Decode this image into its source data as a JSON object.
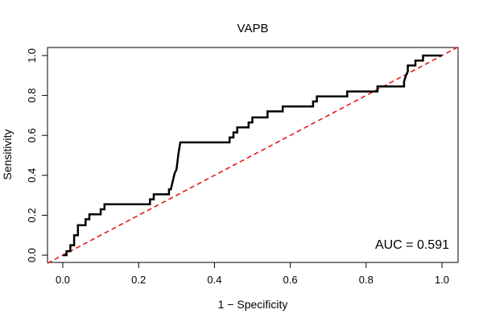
{
  "chart_data": {
    "type": "line",
    "title": "VAPB",
    "xlabel": "1 − Specificity",
    "ylabel": "Sensitivity",
    "xlim": [
      0.0,
      1.0
    ],
    "ylim": [
      0.0,
      1.0
    ],
    "x_ticks": [
      "0.0",
      "0.2",
      "0.4",
      "0.6",
      "0.8",
      "1.0"
    ],
    "y_ticks": [
      "0.0",
      "0.2",
      "0.4",
      "0.6",
      "0.8",
      "1.0"
    ],
    "grid": false,
    "annotation": "AUC = 0.591",
    "colors": {
      "roc": "#000000",
      "reference": "#e41a1c"
    },
    "series": [
      {
        "points": [
          [
            0.0,
            0.0
          ],
          [
            0.01,
            0.0
          ],
          [
            0.01,
            0.02
          ],
          [
            0.02,
            0.02
          ],
          [
            0.02,
            0.05
          ],
          [
            0.03,
            0.05
          ],
          [
            0.03,
            0.1
          ],
          [
            0.04,
            0.1
          ],
          [
            0.04,
            0.15
          ],
          [
            0.06,
            0.15
          ],
          [
            0.06,
            0.18
          ],
          [
            0.07,
            0.18
          ],
          [
            0.07,
            0.205
          ],
          [
            0.09,
            0.205
          ],
          [
            0.1,
            0.205
          ],
          [
            0.1,
            0.23
          ],
          [
            0.11,
            0.23
          ],
          [
            0.11,
            0.255
          ],
          [
            0.23,
            0.255
          ],
          [
            0.23,
            0.28
          ],
          [
            0.24,
            0.28
          ],
          [
            0.24,
            0.305
          ],
          [
            0.28,
            0.305
          ],
          [
            0.28,
            0.33
          ],
          [
            0.285,
            0.33
          ],
          [
            0.29,
            0.37
          ],
          [
            0.295,
            0.41
          ],
          [
            0.3,
            0.43
          ],
          [
            0.305,
            0.51
          ],
          [
            0.31,
            0.565
          ],
          [
            0.44,
            0.565
          ],
          [
            0.44,
            0.59
          ],
          [
            0.45,
            0.59
          ],
          [
            0.45,
            0.615
          ],
          [
            0.46,
            0.615
          ],
          [
            0.46,
            0.64
          ],
          [
            0.49,
            0.64
          ],
          [
            0.49,
            0.665
          ],
          [
            0.5,
            0.665
          ],
          [
            0.5,
            0.69
          ],
          [
            0.54,
            0.69
          ],
          [
            0.54,
            0.72
          ],
          [
            0.58,
            0.72
          ],
          [
            0.58,
            0.745
          ],
          [
            0.66,
            0.745
          ],
          [
            0.66,
            0.77
          ],
          [
            0.67,
            0.77
          ],
          [
            0.67,
            0.795
          ],
          [
            0.75,
            0.795
          ],
          [
            0.75,
            0.82
          ],
          [
            0.83,
            0.82
          ],
          [
            0.83,
            0.845
          ],
          [
            0.9,
            0.845
          ],
          [
            0.9,
            0.87
          ],
          [
            0.905,
            0.9
          ],
          [
            0.91,
            0.92
          ],
          [
            0.91,
            0.95
          ],
          [
            0.93,
            0.95
          ],
          [
            0.93,
            0.975
          ],
          [
            0.95,
            0.975
          ],
          [
            0.95,
            1.0
          ],
          [
            1.0,
            1.0
          ]
        ]
      }
    ],
    "reference_line": [
      [
        0.0,
        0.0
      ],
      [
        1.0,
        1.0
      ]
    ]
  }
}
